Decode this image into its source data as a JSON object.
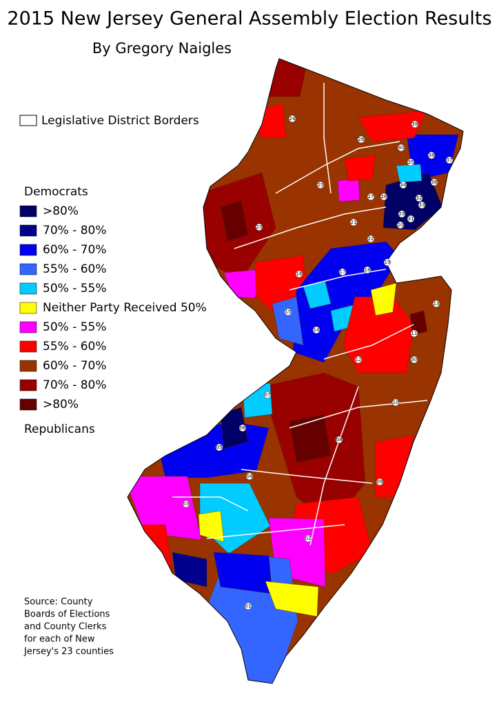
{
  "title": "2015 New Jersey General Assembly Election Results",
  "author": "By Gregory Naigles",
  "legend": {
    "border_label": "Legislative District Borders",
    "top_heading": "Democrats",
    "items": [
      {
        "label": ">80%",
        "color": "#000066"
      },
      {
        "label": "70% - 80%",
        "color": "#00008c"
      },
      {
        "label": "60% - 70%",
        "color": "#0000f0"
      },
      {
        "label": "55% - 60%",
        "color": "#3366ff"
      },
      {
        "label": "50% - 55%",
        "color": "#00ccff"
      },
      {
        "label": "Neither Party Received 50%",
        "color": "#ffff00"
      },
      {
        "label": "50% - 55%",
        "color": "#ff00ff"
      },
      {
        "label": "55% - 60%",
        "color": "#ff0000"
      },
      {
        "label": "60% - 70%",
        "color": "#993300"
      },
      {
        "label": "70% - 80%",
        "color": "#990000"
      },
      {
        "label": ">80%",
        "color": "#660000"
      }
    ],
    "bottom_heading": "Republicans"
  },
  "source": [
    "Source: County",
    "Boards of Elections",
    "and County Clerks",
    "for each of New",
    "Jersey's 23 counties"
  ],
  "districts": [
    "01",
    "02",
    "03",
    "04",
    "05",
    "06",
    "07",
    "08",
    "09",
    "10",
    "11",
    "12",
    "13",
    "14",
    "15",
    "16",
    "17",
    "18",
    "19",
    "20",
    "21",
    "22",
    "23",
    "24",
    "25",
    "26",
    "27",
    "28",
    "29",
    "30",
    "31",
    "32",
    "33",
    "34",
    "35",
    "36",
    "37",
    "38",
    "39",
    "40"
  ]
}
